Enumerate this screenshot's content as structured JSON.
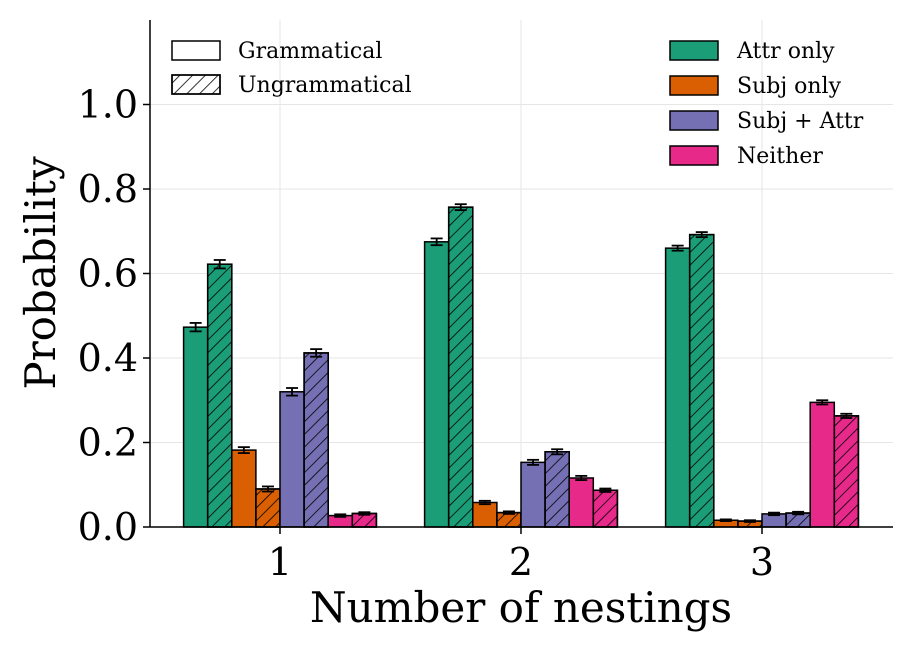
{
  "chart_data": {
    "type": "bar",
    "title": "",
    "xlabel": "Number of nestings",
    "ylabel": "Probability",
    "categories": [
      "1",
      "2",
      "3"
    ],
    "ylim": [
      0,
      1.2
    ],
    "yticks": [
      0.0,
      0.2,
      0.4,
      0.6,
      0.8,
      1.0
    ],
    "ytick_labels": [
      "0.0",
      "0.2",
      "0.4",
      "0.6",
      "0.8",
      "1.0"
    ],
    "grid": true,
    "conditions": [
      {
        "name": "Grammatical",
        "hatch": false
      },
      {
        "name": "Ungrammatical",
        "hatch": true
      }
    ],
    "series": [
      {
        "name": "Attr only",
        "color": "#1b9e77",
        "grammatical": [
          0.473,
          0.675,
          0.66
        ],
        "ungrammatical": [
          0.622,
          0.757,
          0.692
        ],
        "err_grammatical": [
          0.01,
          0.008,
          0.006
        ],
        "err_ungrammatical": [
          0.01,
          0.007,
          0.006
        ]
      },
      {
        "name": "Subj only",
        "color": "#d95f02",
        "grammatical": [
          0.182,
          0.058,
          0.016
        ],
        "ungrammatical": [
          0.09,
          0.034,
          0.014
        ],
        "err_grammatical": [
          0.007,
          0.004,
          0.002
        ],
        "err_ungrammatical": [
          0.006,
          0.003,
          0.002
        ]
      },
      {
        "name": "Subj + Attr",
        "color": "#7570b3",
        "grammatical": [
          0.32,
          0.153,
          0.031
        ],
        "ungrammatical": [
          0.412,
          0.178,
          0.033
        ],
        "err_grammatical": [
          0.009,
          0.006,
          0.003
        ],
        "err_ungrammatical": [
          0.009,
          0.006,
          0.003
        ]
      },
      {
        "name": "Neither",
        "color": "#e7298a",
        "grammatical": [
          0.027,
          0.116,
          0.295
        ],
        "ungrammatical": [
          0.032,
          0.087,
          0.263
        ],
        "err_grammatical": [
          0.003,
          0.005,
          0.005
        ],
        "err_ungrammatical": [
          0.003,
          0.004,
          0.005
        ]
      }
    ],
    "legend_conditions_position": "top-left",
    "legend_series_position": "top-right"
  }
}
